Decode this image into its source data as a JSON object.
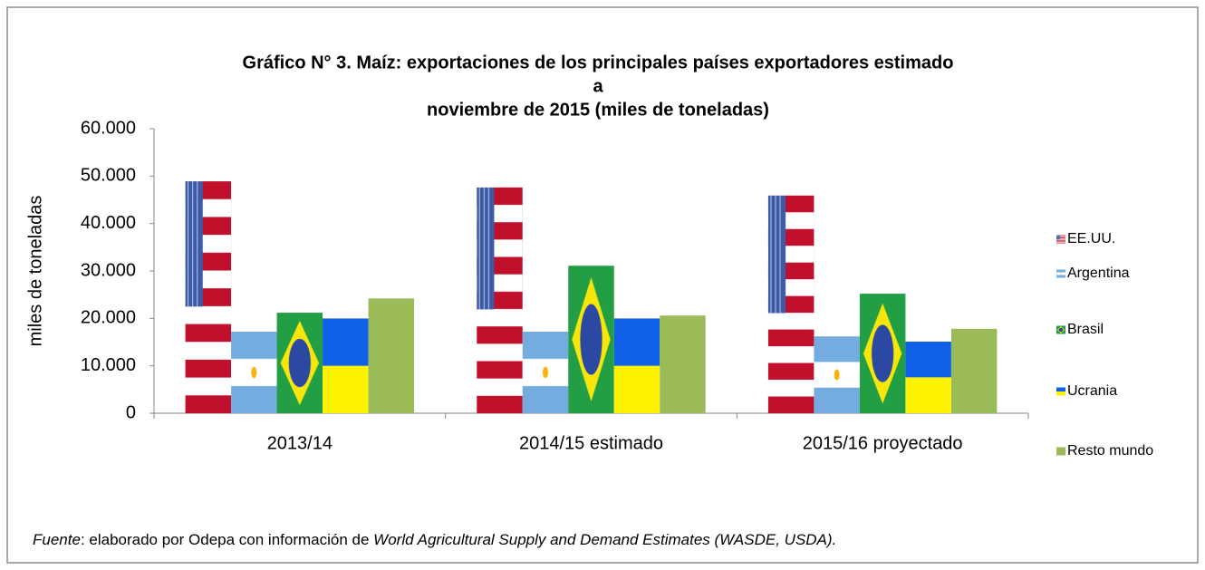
{
  "chart_data": {
    "type": "bar",
    "title": [
      "Gráfico N° 3. Maíz: exportaciones de los principales países exportadores estimado",
      "a",
      "noviembre de 2015 (miles de toneladas)"
    ],
    "y_label": "miles de toneladas",
    "categories": [
      "2013/14",
      "2014/15 estimado",
      "2015/16 proyectado"
    ],
    "series": [
      {
        "name": "EE.UU.",
        "color": "#c0102c",
        "values": [
          48900,
          47600,
          45900
        ]
      },
      {
        "name": "Argentina",
        "color": "#74acdf",
        "values": [
          17200,
          17200,
          16200
        ]
      },
      {
        "name": "Brasil",
        "color": "#229e45",
        "values": [
          21200,
          31100,
          25200
        ]
      },
      {
        "name": "Ucrania",
        "color": "#1060e8",
        "values": [
          20000,
          20000,
          15100
        ]
      },
      {
        "name": "Resto mundo",
        "color": "#9bbb59",
        "values": [
          24200,
          20600,
          17800
        ]
      }
    ],
    "ylim": [
      0,
      60000
    ],
    "yticks": [
      0,
      {
        "value": 10000,
        "label": "10.000"
      },
      {
        "value": 20000,
        "label": "20.000"
      },
      {
        "value": 30000,
        "label": "30.000"
      },
      {
        "value": 40000,
        "label": "40.000"
      },
      {
        "value": 50000,
        "label": "50.000"
      },
      {
        "value": 60000,
        "label": "60.000"
      }
    ],
    "grid": false,
    "legend": "right",
    "footnote": [
      "Fuente",
      ": elaborado por Odepa con información de ",
      "World Agricultural Supply and Demand Estimates  (WASDE, USDA)."
    ]
  }
}
